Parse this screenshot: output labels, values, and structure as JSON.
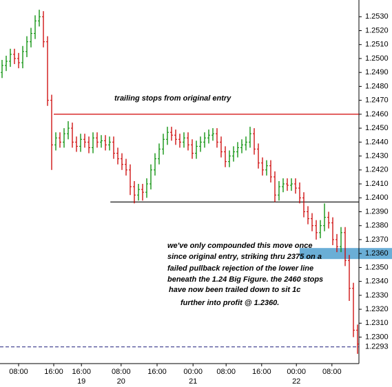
{
  "chart_data": {
    "type": "ohlc",
    "up_color": "#008c00",
    "down_color": "#cc0000",
    "open": [
      1.249,
      1.2495,
      1.2498,
      1.2503,
      1.25,
      1.2497,
      1.2505,
      1.2512,
      1.2518,
      1.2527,
      1.253,
      1.2512,
      1.247,
      1.2438,
      1.2443,
      1.244,
      1.2446,
      1.245,
      1.244,
      1.2437,
      1.2442,
      1.244,
      1.2436,
      1.2443,
      1.244,
      1.2441,
      1.2438,
      1.244,
      1.2432,
      1.2428,
      1.2424,
      1.242,
      1.2408,
      1.2402,
      1.2406,
      1.2404,
      1.241,
      1.242,
      1.2428,
      1.2435,
      1.2442,
      1.2447,
      1.2445,
      1.2442,
      1.244,
      1.2443,
      1.2438,
      1.2432,
      1.2437,
      1.244,
      1.2443,
      1.2445,
      1.2446,
      1.244,
      1.2433,
      1.2426,
      1.243,
      1.2433,
      1.2436,
      1.2438,
      1.244,
      1.2446,
      1.2435,
      1.2425,
      1.242,
      1.2423,
      1.2415,
      1.2402,
      1.2408,
      1.241,
      1.2409,
      1.241,
      1.2407,
      1.24,
      1.239,
      1.2385,
      1.238,
      1.2375,
      1.238,
      1.2386,
      1.2382,
      1.237,
      1.2365,
      1.2375,
      1.2355,
      1.2335,
      1.2305
    ],
    "high": [
      1.2499,
      1.2502,
      1.2507,
      1.2507,
      1.2504,
      1.2509,
      1.2516,
      1.2522,
      1.2531,
      1.2535,
      1.2534,
      1.2516,
      1.2474,
      1.2447,
      1.2447,
      1.245,
      1.2455,
      1.2454,
      1.2444,
      1.2446,
      1.2446,
      1.2444,
      1.2447,
      1.2447,
      1.2445,
      1.2445,
      1.2444,
      1.2444,
      1.2436,
      1.2432,
      1.2428,
      1.2424,
      1.2412,
      1.241,
      1.241,
      1.2414,
      1.2424,
      1.2432,
      1.2439,
      1.2446,
      1.2451,
      1.2451,
      1.2449,
      1.2446,
      1.2447,
      1.2447,
      1.2442,
      1.2441,
      1.2444,
      1.2447,
      1.2449,
      1.245,
      1.245,
      1.2444,
      1.2437,
      1.2434,
      1.2437,
      1.244,
      1.2442,
      1.2444,
      1.2451,
      1.245,
      1.2439,
      1.2429,
      1.2427,
      1.2427,
      1.2419,
      1.2412,
      1.2414,
      1.2414,
      1.2414,
      1.2414,
      1.2411,
      1.2404,
      1.2394,
      1.2389,
      1.2384,
      1.2384,
      1.2396,
      1.239,
      1.2386,
      1.2374,
      1.2379,
      1.2379,
      1.2359,
      1.2339,
      1.2309
    ],
    "low": [
      1.2486,
      1.2491,
      1.2494,
      1.2496,
      1.2493,
      1.2493,
      1.2501,
      1.2508,
      1.2514,
      1.2523,
      1.2508,
      1.2466,
      1.242,
      1.2434,
      1.2436,
      1.2436,
      1.2442,
      1.2436,
      1.2433,
      1.2433,
      1.2436,
      1.2432,
      1.2432,
      1.2436,
      1.2436,
      1.2434,
      1.2434,
      1.2428,
      1.2424,
      1.242,
      1.2416,
      1.2402,
      1.2396,
      1.2398,
      1.2398,
      1.24,
      1.2406,
      1.2416,
      1.2424,
      1.2431,
      1.2438,
      1.2441,
      1.2438,
      1.2436,
      1.2436,
      1.2434,
      1.2428,
      1.2428,
      1.2433,
      1.2436,
      1.2439,
      1.2441,
      1.2436,
      1.2429,
      1.2422,
      1.2422,
      1.2426,
      1.2429,
      1.2432,
      1.2434,
      1.2436,
      1.2431,
      1.2421,
      1.2416,
      1.2416,
      1.2411,
      1.2397,
      1.2398,
      1.2404,
      1.2405,
      1.2405,
      1.2403,
      1.2396,
      1.2386,
      1.2381,
      1.2376,
      1.237,
      1.2371,
      1.2376,
      1.2378,
      1.2366,
      1.2361,
      1.2361,
      1.2351,
      1.2326,
      1.23,
      1.2288
    ],
    "close": [
      1.2495,
      1.2498,
      1.2503,
      1.25,
      1.2497,
      1.2505,
      1.2512,
      1.2518,
      1.2527,
      1.253,
      1.2512,
      1.247,
      1.2438,
      1.2443,
      1.244,
      1.2446,
      1.245,
      1.244,
      1.2437,
      1.2442,
      1.244,
      1.2436,
      1.2443,
      1.244,
      1.2441,
      1.2438,
      1.244,
      1.2432,
      1.2428,
      1.2424,
      1.242,
      1.2408,
      1.2402,
      1.2406,
      1.2404,
      1.241,
      1.242,
      1.2428,
      1.2435,
      1.2442,
      1.2447,
      1.2445,
      1.2442,
      1.244,
      1.2443,
      1.2438,
      1.2432,
      1.2437,
      1.244,
      1.2443,
      1.2445,
      1.2446,
      1.244,
      1.2433,
      1.2426,
      1.243,
      1.2433,
      1.2436,
      1.2438,
      1.244,
      1.2446,
      1.2435,
      1.2425,
      1.242,
      1.2423,
      1.2415,
      1.2402,
      1.2408,
      1.241,
      1.2409,
      1.241,
      1.2407,
      1.24,
      1.239,
      1.2385,
      1.238,
      1.2375,
      1.238,
      1.2386,
      1.2382,
      1.237,
      1.2365,
      1.2375,
      1.2355,
      1.2335,
      1.2305,
      1.2295
    ],
    "ylim": [
      1.2281,
      1.2542
    ],
    "yticks": [
      {
        "value": 1.23,
        "label": "1.2300"
      },
      {
        "value": 1.231,
        "label": "1.2310"
      },
      {
        "value": 1.232,
        "label": "1.2320"
      },
      {
        "value": 1.233,
        "label": "1.2330"
      },
      {
        "value": 1.234,
        "label": "1.2340"
      },
      {
        "value": 1.235,
        "label": "1.2350"
      },
      {
        "value": 1.236,
        "label": "1.2360"
      },
      {
        "value": 1.237,
        "label": "1.2370"
      },
      {
        "value": 1.238,
        "label": "1.2380"
      },
      {
        "value": 1.239,
        "label": "1.2390"
      },
      {
        "value": 1.24,
        "label": "1.2400"
      },
      {
        "value": 1.241,
        "label": "1.2410"
      },
      {
        "value": 1.242,
        "label": "1.2420"
      },
      {
        "value": 1.243,
        "label": "1.2430"
      },
      {
        "value": 1.244,
        "label": "1.2440"
      },
      {
        "value": 1.245,
        "label": "1.2450"
      },
      {
        "value": 1.246,
        "label": "1.2460"
      },
      {
        "value": 1.247,
        "label": "1.2470"
      },
      {
        "value": 1.248,
        "label": "1.2480"
      },
      {
        "value": 1.249,
        "label": "1.2490"
      },
      {
        "value": 1.25,
        "label": "1.2500"
      },
      {
        "value": 1.251,
        "label": "1.2510"
      },
      {
        "value": 1.252,
        "label": "1.2520"
      },
      {
        "value": 1.253,
        "label": "1.2530"
      }
    ],
    "xticks": [
      {
        "value": 4,
        "label": "08:00"
      },
      {
        "value": 12.5,
        "label": "16:00"
      },
      {
        "value": 19.2,
        "label": "16:00",
        "day": "19"
      },
      {
        "value": 28.8,
        "label": "08:00",
        "day": "20"
      },
      {
        "value": 37.5,
        "label": "16:00"
      },
      {
        "value": 46.2,
        "label": "00:00",
        "day": "21"
      },
      {
        "value": 54.2,
        "label": "08:00"
      },
      {
        "value": 62.8,
        "label": "16:00"
      },
      {
        "value": 71.2,
        "label": "00:00",
        "day": "22"
      },
      {
        "value": 79.8,
        "label": "08:00"
      }
    ],
    "levels": [
      {
        "value": 1.246,
        "start": 12.5,
        "color": "#d00000"
      },
      {
        "value": 1.2397,
        "start": 26.2,
        "color": "#000000"
      }
    ],
    "current_price": {
      "value": 1.2293,
      "label": "1.2293",
      "color": "#0000cc"
    },
    "highlight": {
      "value": 1.236,
      "start": 72,
      "color": "#6aaed6"
    },
    "annotations": [
      {
        "lines": [
          "trailing stops from original entry"
        ]
      },
      {
        "lines": [
          "we've only compounded this move once",
          "since original entry, striking thru 2375 on a",
          "failed pullback rejection of the lower line",
          "beneath the 1.24 Big Figure. the 2460 stops",
          "have now been trailed down to sit 1c",
          "further into profit @ 1.2360."
        ]
      }
    ]
  }
}
